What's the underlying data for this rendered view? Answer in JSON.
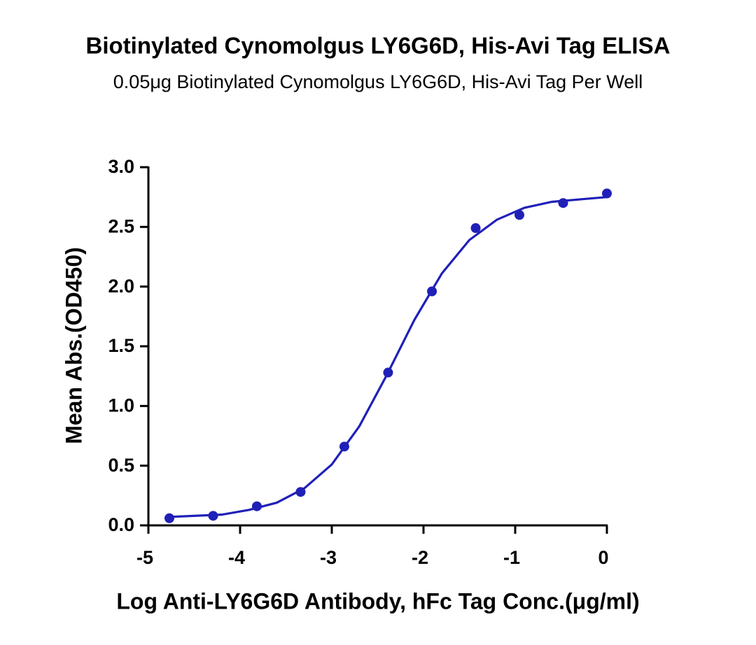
{
  "chart_data": {
    "type": "scatter",
    "title": "Biotinylated Cynomolgus LY6G6D, His-Avi Tag ELISA",
    "subtitle": "0.05μg Biotinylated Cynomolgus LY6G6D, His-Avi Tag Per Well",
    "x_label": "Log Anti-LY6G6D Antibody, hFc Tag Conc.(μg/ml)",
    "y_label": "Mean Abs.(OD450)",
    "xlim": [
      -5,
      0
    ],
    "xticks": [
      -5,
      -4,
      -3,
      -2,
      -1,
      0
    ],
    "ylim": [
      0,
      3
    ],
    "yticks": [
      {
        "value": 0,
        "label": "0.0"
      },
      0.5,
      {
        "value": 1,
        "label": "1.0"
      },
      1.5,
      {
        "value": 2,
        "label": "2.0"
      },
      2.5,
      {
        "value": 3,
        "label": "3.0"
      }
    ],
    "grid": false,
    "series": [
      {
        "color": "#2020b8",
        "marker": "circle",
        "x": [
          -4.771,
          -4.294,
          -3.817,
          -3.34,
          -2.863,
          -2.386,
          -1.908,
          -1.431,
          -0.954,
          -0.477,
          0
        ],
        "values": [
          0.06,
          0.08,
          0.16,
          0.28,
          0.66,
          1.28,
          1.96,
          2.49,
          2.6,
          2.7,
          2.78
        ]
      },
      {
        "color": "#2020b8",
        "marker": "line",
        "x": [
          -4.8,
          -4.5,
          -4.2,
          -3.9,
          -3.6,
          -3.3,
          -3.0,
          -2.7,
          -2.4,
          -2.1,
          -1.8,
          -1.5,
          -1.2,
          -0.9,
          -0.6,
          -0.3,
          0
        ],
        "values": [
          0.07,
          0.08,
          0.09,
          0.13,
          0.19,
          0.31,
          0.51,
          0.83,
          1.26,
          1.72,
          2.11,
          2.39,
          2.56,
          2.66,
          2.71,
          2.73,
          2.75
        ]
      }
    ]
  }
}
